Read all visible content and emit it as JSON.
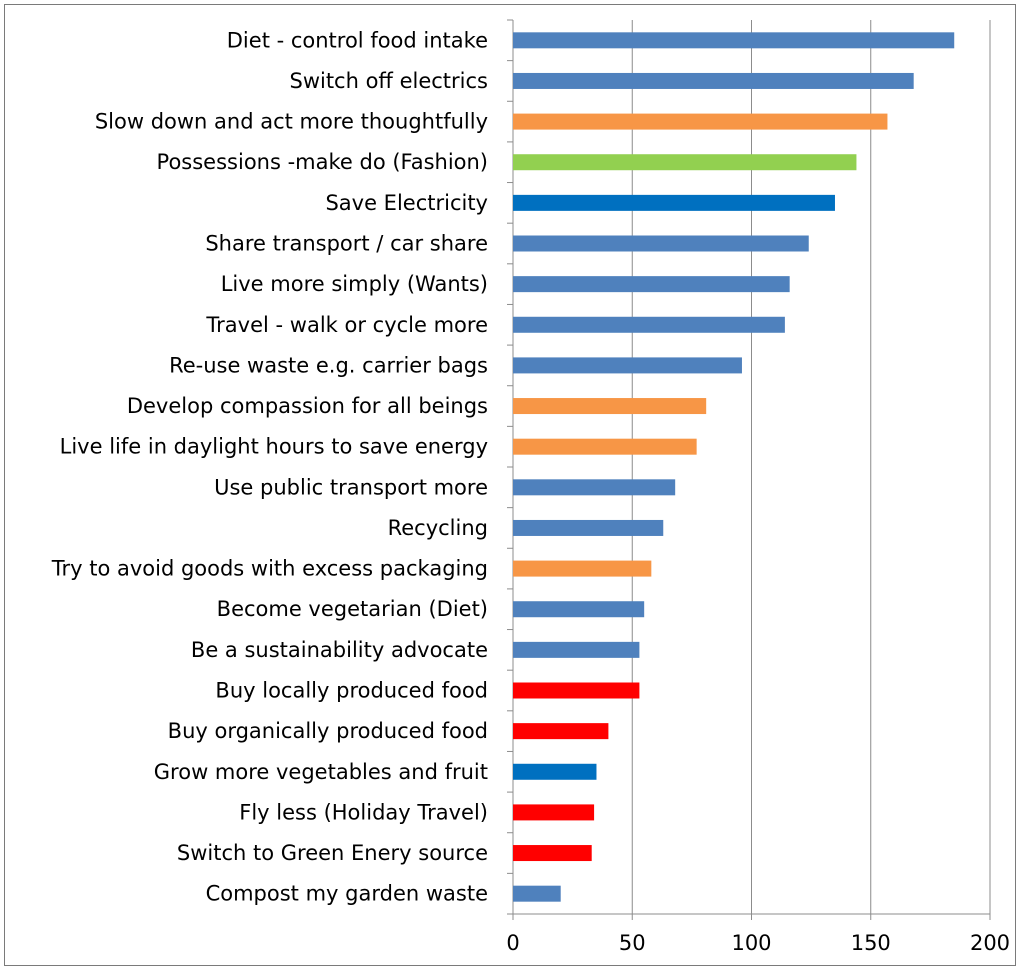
{
  "chart_data": {
    "type": "bar",
    "orientation": "horizontal",
    "title": "",
    "xlabel": "",
    "ylabel": "",
    "xlim": [
      0,
      200
    ],
    "xticks": [
      0,
      50,
      100,
      150,
      200
    ],
    "grid": "vertical",
    "legend": "none",
    "categories": [
      "Diet - control food intake",
      "Switch off electrics",
      "Slow down and act more thoughtfully",
      "Possessions -make do (Fashion)",
      "Save Electricity",
      "Share transport / car share",
      "Live more simply (Wants)",
      "Travel - walk or cycle more",
      "Re-use waste e.g. carrier bags",
      "Develop compassion for all beings",
      "Live life in daylight hours to save energy",
      "Use public transport more",
      "Recycling",
      "Try to avoid goods with excess packaging",
      "Become vegetarian (Diet)",
      "Be a sustainability advocate",
      "Buy locally produced food",
      "Buy organically produced food",
      "Grow more vegetables and fruit",
      "Fly less (Holiday Travel)",
      "Switch to Green Enery source",
      "Compost my garden waste"
    ],
    "values": [
      185,
      168,
      157,
      144,
      135,
      124,
      116,
      114,
      96,
      81,
      77,
      68,
      63,
      58,
      55,
      53,
      53,
      40,
      35,
      34,
      33,
      20
    ],
    "colors": [
      "#4f81bd",
      "#4f81bd",
      "#f79646",
      "#92d050",
      "#0070c0",
      "#4f81bd",
      "#4f81bd",
      "#4f81bd",
      "#4f81bd",
      "#f79646",
      "#f79646",
      "#4f81bd",
      "#4f81bd",
      "#f79646",
      "#4f81bd",
      "#4f81bd",
      "#ff0000",
      "#ff0000",
      "#0070c0",
      "#ff0000",
      "#ff0000",
      "#4f81bd"
    ],
    "gridline_color": "#8c8c8c",
    "axis_color": "#8c8c8c"
  }
}
